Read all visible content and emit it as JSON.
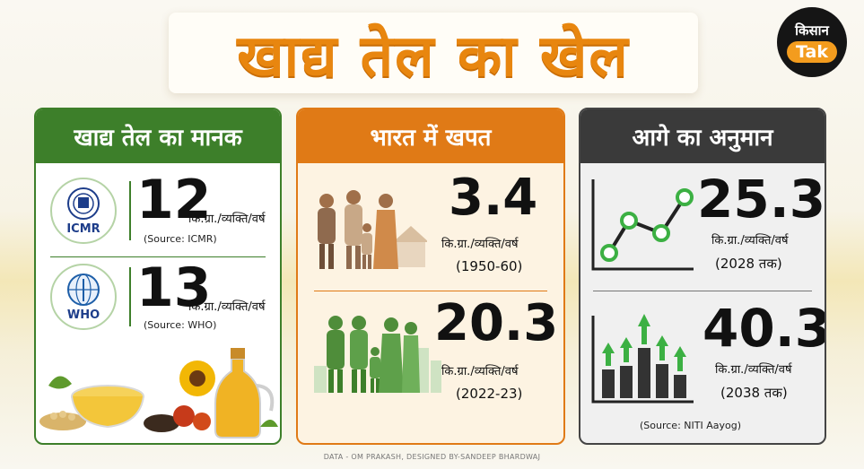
{
  "title": "खाद्य तेल का खेल",
  "logo": {
    "top": "किसान",
    "bottom": "Tak"
  },
  "panels": {
    "standard": {
      "heading": "खाद्य तेल का मानक",
      "items": [
        {
          "org": "ICMR",
          "value": "12",
          "unit": "कि.ग्रा./व्यक्ति/वर्ष",
          "source": "(Source: ICMR)"
        },
        {
          "org": "WHO",
          "value": "13",
          "unit": "कि.ग्रा./व्यक्ति/वर्ष",
          "source": "(Source: WHO)"
        }
      ]
    },
    "consumption": {
      "heading": "भारत में खपत",
      "items": [
        {
          "value": "3.4",
          "unit": "कि.ग्रा./व्यक्ति/वर्ष",
          "period": "(1950-60)"
        },
        {
          "value": "20.3",
          "unit": "कि.ग्रा./व्यक्ति/वर्ष",
          "period": "(2022-23)"
        }
      ]
    },
    "forecast": {
      "heading": "आगे का अनुमान",
      "items": [
        {
          "value": "25.3",
          "unit": "कि.ग्रा./व्यक्ति/वर्ष",
          "period": "(2028 तक)"
        },
        {
          "value": "40.3",
          "unit": "कि.ग्रा./व्यक्ति/वर्ष",
          "period": "(2038 तक)"
        }
      ],
      "source": "(Source: NITI Aayog)"
    }
  },
  "footer": "DATA - OM PRAKASH, DESIGNED BY-SANDEEP BHARDWAJ",
  "colors": {
    "orange": "#e8860f",
    "green": "#3d7f2a",
    "dark": "#3a3a3a"
  }
}
